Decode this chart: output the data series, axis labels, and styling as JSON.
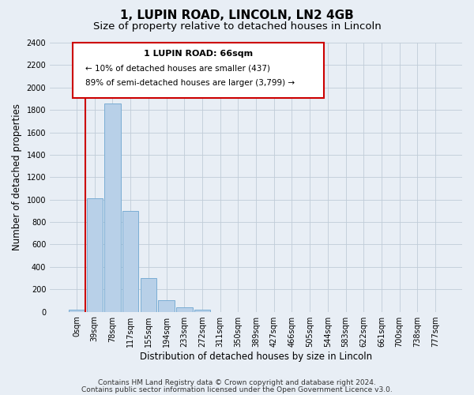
{
  "title": "1, LUPIN ROAD, LINCOLN, LN2 4GB",
  "subtitle": "Size of property relative to detached houses in Lincoln",
  "xlabel": "Distribution of detached houses by size in Lincoln",
  "ylabel": "Number of detached properties",
  "bar_labels": [
    "0sqm",
    "39sqm",
    "78sqm",
    "117sqm",
    "155sqm",
    "194sqm",
    "233sqm",
    "272sqm",
    "311sqm",
    "350sqm",
    "389sqm",
    "427sqm",
    "466sqm",
    "505sqm",
    "544sqm",
    "583sqm",
    "622sqm",
    "661sqm",
    "700sqm",
    "738sqm",
    "777sqm"
  ],
  "bar_values": [
    20,
    1010,
    1860,
    900,
    300,
    100,
    40,
    20,
    0,
    0,
    0,
    0,
    0,
    0,
    0,
    0,
    0,
    0,
    0,
    0,
    0
  ],
  "bar_color": "#b8d0e8",
  "bar_edge_color": "#7aadd4",
  "highlight_color": "#cc0000",
  "red_line_x": 1.5,
  "ylim": [
    0,
    2400
  ],
  "yticks": [
    0,
    200,
    400,
    600,
    800,
    1000,
    1200,
    1400,
    1600,
    1800,
    2000,
    2200,
    2400
  ],
  "annotation_title": "1 LUPIN ROAD: 66sqm",
  "annotation_line1": "← 10% of detached houses are smaller (437)",
  "annotation_line2": "89% of semi-detached houses are larger (3,799) →",
  "footer1": "Contains HM Land Registry data © Crown copyright and database right 2024.",
  "footer2": "Contains public sector information licensed under the Open Government Licence v3.0.",
  "bg_color": "#e8eef5",
  "plot_bg_color": "#e8eef5",
  "grid_color": "#c0ccd8",
  "title_fontsize": 11,
  "subtitle_fontsize": 9.5,
  "axis_label_fontsize": 8.5,
  "tick_fontsize": 7,
  "footer_fontsize": 6.5,
  "ann_title_fontsize": 8,
  "ann_text_fontsize": 7.5
}
